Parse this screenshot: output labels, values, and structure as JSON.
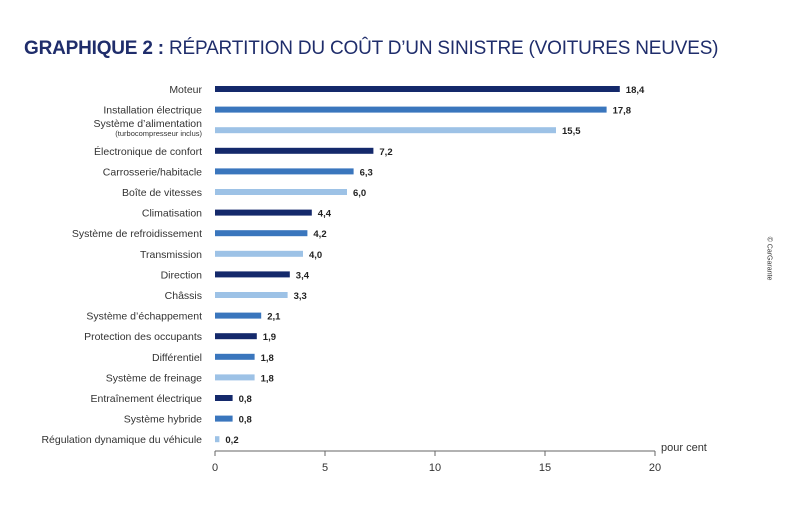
{
  "title": {
    "bold": "GRAPHIQUE 2 :",
    "rest": "RÉPARTITION DU COÛT D’UN SINISTRE (VOITURES NEUVES)"
  },
  "credit": "© CarGarante",
  "colors": {
    "dark": "#14296b",
    "mid": "#3a76bd",
    "light": "#9dc2e6",
    "text": "#333333"
  },
  "chart_data": {
    "type": "bar",
    "orientation": "horizontal",
    "title": "RÉPARTITION DU COÛT D’UN SINISTRE (VOITURES NEUVES)",
    "xlabel": "pour cent",
    "ylabel": "",
    "xlim": [
      0,
      20
    ],
    "xticks": [
      0,
      5,
      10,
      15,
      20
    ],
    "categories": [
      {
        "label": "Moteur",
        "sub": "",
        "value": 18.4,
        "value_label": "18,4",
        "shade": "dark"
      },
      {
        "label": "Installation électrique",
        "sub": "",
        "value": 17.8,
        "value_label": "17,8",
        "shade": "mid"
      },
      {
        "label": "Système d’alimentation",
        "sub": "(turbocompresseur inclus)",
        "value": 15.5,
        "value_label": "15,5",
        "shade": "light"
      },
      {
        "label": "Électronique de confort",
        "sub": "",
        "value": 7.2,
        "value_label": "7,2",
        "shade": "dark"
      },
      {
        "label": "Carrosserie/habitacle",
        "sub": "",
        "value": 6.3,
        "value_label": "6,3",
        "shade": "mid"
      },
      {
        "label": "Boîte de vitesses",
        "sub": "",
        "value": 6.0,
        "value_label": "6,0",
        "shade": "light"
      },
      {
        "label": "Climatisation",
        "sub": "",
        "value": 4.4,
        "value_label": "4,4",
        "shade": "dark"
      },
      {
        "label": "Système de refroidissement",
        "sub": "",
        "value": 4.2,
        "value_label": "4,2",
        "shade": "mid"
      },
      {
        "label": "Transmission",
        "sub": "",
        "value": 4.0,
        "value_label": "4,0",
        "shade": "light"
      },
      {
        "label": "Direction",
        "sub": "",
        "value": 3.4,
        "value_label": "3,4",
        "shade": "dark"
      },
      {
        "label": "Châssis",
        "sub": "",
        "value": 3.3,
        "value_label": "3,3",
        "shade": "light"
      },
      {
        "label": "Système d’échappement",
        "sub": "",
        "value": 2.1,
        "value_label": "2,1",
        "shade": "mid"
      },
      {
        "label": "Protection des occupants",
        "sub": "",
        "value": 1.9,
        "value_label": "1,9",
        "shade": "dark"
      },
      {
        "label": "Différentiel",
        "sub": "",
        "value": 1.8,
        "value_label": "1,8",
        "shade": "mid"
      },
      {
        "label": "Système de freinage",
        "sub": "",
        "value": 1.8,
        "value_label": "1,8",
        "shade": "light"
      },
      {
        "label": "Entraînement électrique",
        "sub": "",
        "value": 0.8,
        "value_label": "0,8",
        "shade": "dark"
      },
      {
        "label": "Système hybride",
        "sub": "",
        "value": 0.8,
        "value_label": "0,8",
        "shade": "mid"
      },
      {
        "label": "Régulation dynamique du véhicule",
        "sub": "",
        "value": 0.2,
        "value_label": "0,2",
        "shade": "light"
      }
    ]
  }
}
